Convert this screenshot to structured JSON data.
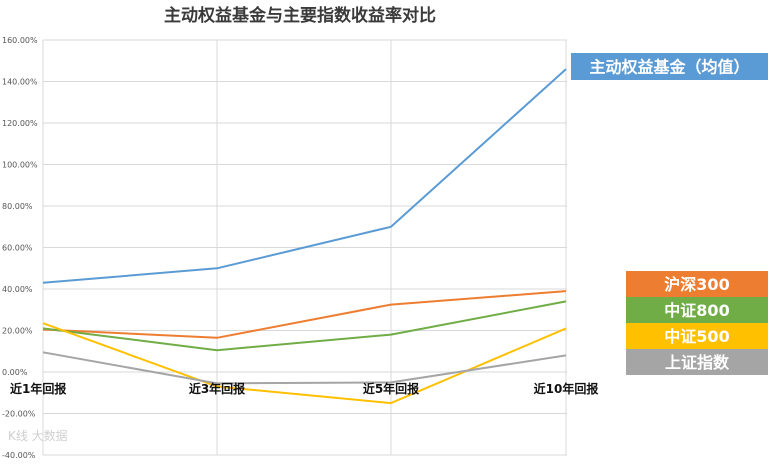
{
  "chart_data": {
    "type": "line",
    "title": "主动权益基金与主要指数收益率对比",
    "categories": [
      "近1年回报",
      "近3年回报",
      "近5年回报",
      "近10年回报"
    ],
    "y_ticks": [
      "160.00%",
      "140.00%",
      "120.00%",
      "100.00%",
      "80.00%",
      "60.00%",
      "40.00%",
      "20.00%",
      "0.00%",
      "-20.00%",
      "-40.00%"
    ],
    "ylim": [
      -40,
      160
    ],
    "y_unit": "%",
    "grid": true,
    "legend_placement": "right",
    "series": [
      {
        "name": "主动权益基金（均值）",
        "color": "#5b9bd5",
        "values": [
          43,
          50,
          70,
          146
        ]
      },
      {
        "name": "沪深300",
        "color": "#ed7d31",
        "values": [
          20.5,
          16.5,
          32.5,
          39
        ]
      },
      {
        "name": "中证800",
        "color": "#70ad47",
        "values": [
          21,
          10.5,
          18,
          34
        ]
      },
      {
        "name": "中证500",
        "color": "#ffc000",
        "values": [
          23.5,
          -7,
          -15,
          21
        ]
      },
      {
        "name": "上证指数",
        "color": "#a5a5a5",
        "values": [
          9.5,
          -5.5,
          -5,
          8
        ]
      }
    ]
  },
  "watermark": "K线 大数据"
}
